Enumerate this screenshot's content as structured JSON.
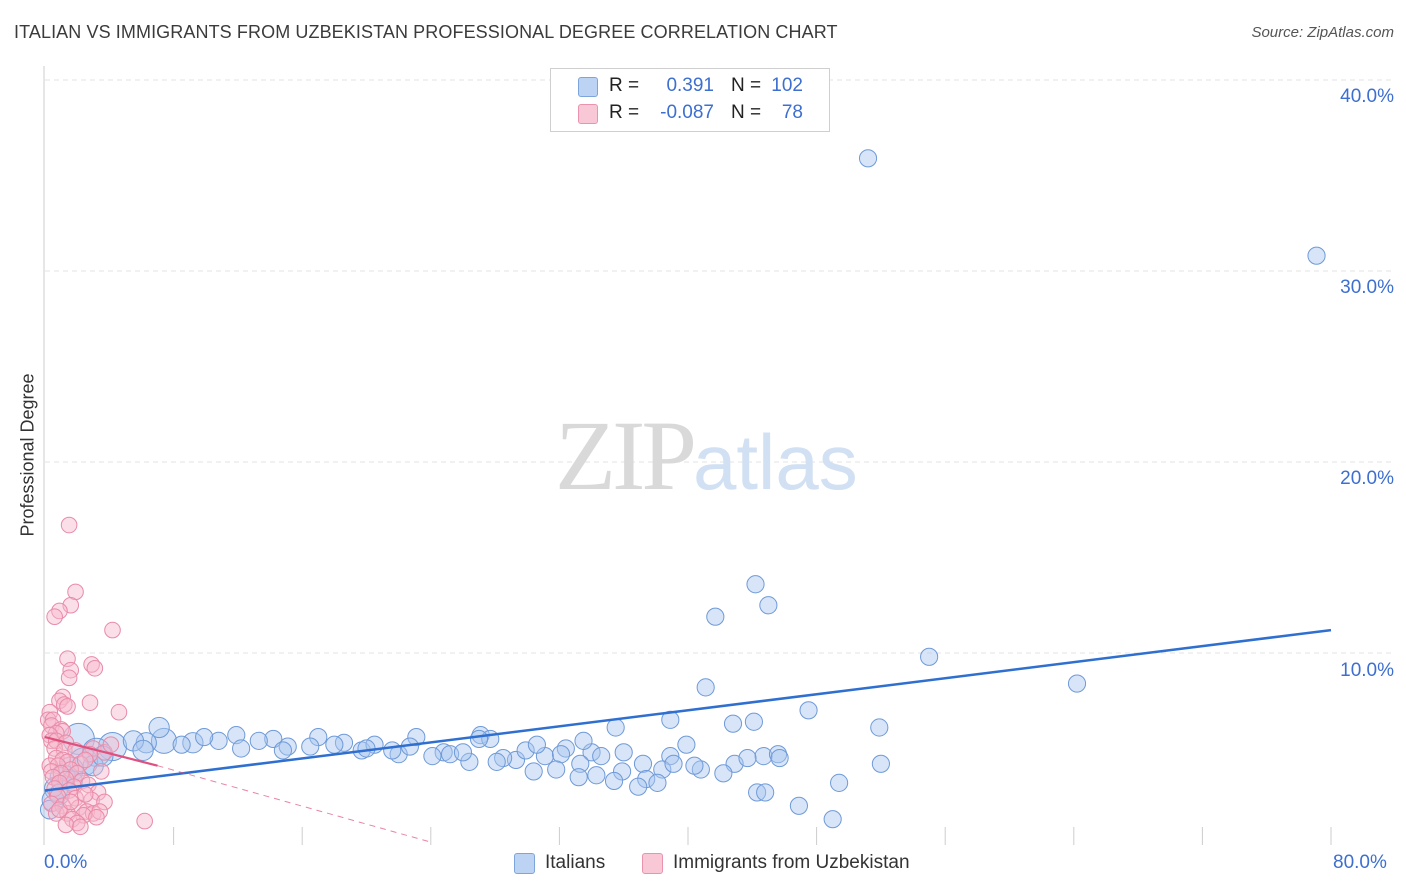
{
  "title": "ITALIAN VS IMMIGRANTS FROM UZBEKISTAN PROFESSIONAL DEGREE CORRELATION CHART",
  "source": "Source: ZipAtlas.com",
  "watermark": {
    "part1": "ZIP",
    "part2": "atlas"
  },
  "colors": {
    "blue_fill": "#a9c6f0",
    "blue_stroke": "#6e9ad8",
    "blue_line": "#2e6fd0",
    "pink_fill": "#f6b8cb",
    "pink_stroke": "#e98aa8",
    "pink_line": "#e0507e",
    "grid": "#e3e3e3",
    "tick_text": "#3d6fd0"
  },
  "legend": {
    "rows": [
      {
        "r_label": "R =",
        "r_value": "0.391",
        "n_label": "N =",
        "n_value": "102"
      },
      {
        "r_label": "R =",
        "r_value": "-0.087",
        "n_label": "N =",
        "n_value": "78"
      }
    ]
  },
  "bottom_legend": {
    "series1": "Italians",
    "series2": "Immigrants from Uzbekistan"
  },
  "x_ticks": {
    "left": "0.0%",
    "right": "80.0%"
  },
  "y_ticks": [
    "40.0%",
    "30.0%",
    "20.0%",
    "10.0%"
  ],
  "chart_data": {
    "type": "scatter",
    "title": "ITALIAN VS IMMIGRANTS FROM UZBEKISTAN PROFESSIONAL DEGREE CORRELATION CHART",
    "xlabel": "",
    "ylabel": "Professional Degree",
    "xlim": [
      0,
      80
    ],
    "ylim": [
      0,
      42
    ],
    "y_gridlines": [
      10,
      20,
      30,
      40
    ],
    "series": [
      {
        "name": "Italians",
        "R": 0.391,
        "N": 102,
        "trend": {
          "x": [
            0,
            80
          ],
          "y": [
            2.8,
            11.2
          ]
        },
        "points": [
          [
            51.2,
            35.9,
            11
          ],
          [
            79.1,
            30.8,
            11
          ],
          [
            44.2,
            13.6,
            11
          ],
          [
            45.0,
            12.5,
            11
          ],
          [
            41.7,
            11.9,
            11
          ],
          [
            55.0,
            9.8,
            11
          ],
          [
            64.2,
            8.4,
            11
          ],
          [
            41.1,
            8.2,
            11
          ],
          [
            47.5,
            7.0,
            11
          ],
          [
            38.9,
            6.5,
            11
          ],
          [
            42.8,
            6.3,
            11
          ],
          [
            44.1,
            6.4,
            11
          ],
          [
            35.5,
            6.1,
            11
          ],
          [
            51.9,
            6.1,
            11
          ],
          [
            39.9,
            5.2,
            11
          ],
          [
            34.0,
            4.8,
            11
          ],
          [
            36.0,
            4.8,
            11
          ],
          [
            37.2,
            4.2,
            11
          ],
          [
            38.9,
            4.6,
            11
          ],
          [
            44.7,
            4.6,
            11
          ],
          [
            45.6,
            4.7,
            11
          ],
          [
            42.9,
            4.2,
            11
          ],
          [
            49.4,
            3.2,
            11
          ],
          [
            52.0,
            4.2,
            11
          ],
          [
            44.3,
            2.7,
            11
          ],
          [
            44.8,
            2.7,
            11
          ],
          [
            46.9,
            2.0,
            11
          ],
          [
            49.0,
            1.3,
            11
          ],
          [
            2.1,
            5.5,
            20
          ],
          [
            4.2,
            5.1,
            18
          ],
          [
            7.4,
            5.4,
            16
          ],
          [
            7.1,
            6.1,
            13
          ],
          [
            9.2,
            5.3,
            13
          ],
          [
            11.9,
            5.7,
            11
          ],
          [
            14.2,
            5.5,
            11
          ],
          [
            17.0,
            5.6,
            11
          ],
          [
            23.1,
            5.6,
            11
          ],
          [
            19.7,
            4.9,
            11
          ],
          [
            22.0,
            4.7,
            11
          ],
          [
            24.8,
            4.8,
            11
          ],
          [
            26.4,
            4.3,
            11
          ],
          [
            27.1,
            5.7,
            11
          ],
          [
            29.3,
            4.4,
            11
          ],
          [
            31.1,
            4.6,
            11
          ],
          [
            32.4,
            5.0,
            11
          ],
          [
            35.9,
            3.8,
            11
          ],
          [
            33.3,
            4.2,
            11
          ],
          [
            30.4,
            3.8,
            11
          ],
          [
            28.5,
            4.5,
            11
          ],
          [
            25.2,
            4.7,
            11
          ],
          [
            21.6,
            4.9,
            11
          ],
          [
            20.5,
            5.2,
            11
          ],
          [
            18.6,
            5.3,
            11
          ],
          [
            16.5,
            5.1,
            11
          ],
          [
            15.1,
            5.1,
            11
          ],
          [
            13.3,
            5.4,
            11
          ],
          [
            10.8,
            5.4,
            11
          ],
          [
            9.9,
            5.6,
            11
          ],
          [
            8.5,
            5.2,
            11
          ],
          [
            6.3,
            5.3,
            13
          ],
          [
            5.5,
            5.4,
            13
          ],
          [
            3.2,
            4.8,
            18
          ],
          [
            2.4,
            4.3,
            18
          ],
          [
            1.6,
            3.9,
            16
          ],
          [
            1.1,
            3.5,
            16
          ],
          [
            0.7,
            2.9,
            15
          ],
          [
            0.5,
            2.3,
            14
          ],
          [
            0.3,
            1.8,
            12
          ],
          [
            0.9,
            2.6,
            13
          ],
          [
            1.7,
            3.3,
            13
          ],
          [
            3.0,
            4.1,
            13
          ],
          [
            3.6,
            4.6,
            13
          ],
          [
            6.1,
            4.9,
            13
          ],
          [
            12.2,
            5.0,
            11
          ],
          [
            14.8,
            4.9,
            11
          ],
          [
            18.0,
            5.2,
            11
          ],
          [
            20.0,
            5.0,
            11
          ],
          [
            22.7,
            5.1,
            11
          ],
          [
            24.1,
            4.6,
            11
          ],
          [
            26.0,
            4.8,
            11
          ],
          [
            27.7,
            5.5,
            11
          ],
          [
            29.9,
            4.9,
            11
          ],
          [
            30.6,
            5.2,
            11
          ],
          [
            32.1,
            4.7,
            11
          ],
          [
            33.5,
            5.4,
            11
          ],
          [
            34.6,
            4.6,
            11
          ],
          [
            31.8,
            3.9,
            11
          ],
          [
            28.1,
            4.3,
            11
          ],
          [
            37.4,
            3.4,
            11
          ],
          [
            38.4,
            3.9,
            11
          ],
          [
            39.1,
            4.2,
            11
          ],
          [
            40.8,
            3.9,
            11
          ],
          [
            42.2,
            3.7,
            11
          ],
          [
            36.9,
            3.0,
            11
          ],
          [
            38.1,
            3.2,
            11
          ],
          [
            40.4,
            4.1,
            11
          ],
          [
            43.7,
            4.5,
            11
          ],
          [
            45.7,
            4.5,
            11
          ],
          [
            34.3,
            3.6,
            11
          ],
          [
            33.2,
            3.5,
            11
          ],
          [
            35.4,
            3.3,
            11
          ],
          [
            27.0,
            5.5,
            11
          ]
        ]
      },
      {
        "name": "Immigrants from Uzbekistan",
        "R": -0.087,
        "N": 78,
        "trend_solid": {
          "x": [
            0,
            7
          ],
          "y": [
            5.6,
            4.1
          ]
        },
        "trend_dashed": {
          "x": [
            7,
            24
          ],
          "y": [
            4.1,
            0.1
          ]
        },
        "points": [
          [
            1.5,
            16.7,
            10
          ],
          [
            1.9,
            13.2,
            10
          ],
          [
            1.6,
            12.5,
            10
          ],
          [
            0.9,
            12.2,
            10
          ],
          [
            0.6,
            11.9,
            10
          ],
          [
            4.2,
            11.2,
            10
          ],
          [
            1.4,
            9.7,
            10
          ],
          [
            2.9,
            9.4,
            10
          ],
          [
            1.6,
            9.1,
            10
          ],
          [
            3.1,
            9.2,
            10
          ],
          [
            1.5,
            8.7,
            10
          ],
          [
            1.1,
            7.7,
            10
          ],
          [
            0.9,
            7.5,
            10
          ],
          [
            2.8,
            7.4,
            10
          ],
          [
            1.2,
            7.3,
            10
          ],
          [
            1.4,
            7.2,
            10
          ],
          [
            4.6,
            6.9,
            10
          ],
          [
            0.3,
            6.9,
            10
          ],
          [
            0.2,
            6.5,
            10
          ],
          [
            0.5,
            6.5,
            10
          ],
          [
            0.4,
            6.2,
            10
          ],
          [
            1.0,
            6.0,
            10
          ],
          [
            1.1,
            5.9,
            10
          ],
          [
            0.7,
            5.8,
            10
          ],
          [
            0.3,
            5.7,
            10
          ],
          [
            0.4,
            5.4,
            10
          ],
          [
            0.7,
            5.4,
            10
          ],
          [
            1.3,
            5.3,
            10
          ],
          [
            0.6,
            5.0,
            10
          ],
          [
            3.0,
            5.0,
            10
          ],
          [
            1.2,
            4.9,
            10
          ],
          [
            1.9,
            4.9,
            10
          ],
          [
            3.7,
            4.8,
            10
          ],
          [
            4.1,
            5.2,
            10
          ],
          [
            2.8,
            4.7,
            10
          ],
          [
            0.7,
            4.5,
            10
          ],
          [
            1.1,
            4.4,
            10
          ],
          [
            1.4,
            4.3,
            10
          ],
          [
            2.2,
            4.2,
            10
          ],
          [
            2.5,
            4.4,
            10
          ],
          [
            0.3,
            4.1,
            10
          ],
          [
            0.8,
            4.1,
            10
          ],
          [
            1.6,
            3.9,
            10
          ],
          [
            0.4,
            3.8,
            10
          ],
          [
            1.0,
            3.7,
            10
          ],
          [
            2.0,
            3.7,
            10
          ],
          [
            3.5,
            3.8,
            10
          ],
          [
            0.5,
            3.5,
            10
          ],
          [
            1.3,
            3.4,
            10
          ],
          [
            2.3,
            3.3,
            10
          ],
          [
            0.9,
            3.2,
            10
          ],
          [
            1.8,
            3.0,
            10
          ],
          [
            2.7,
            3.1,
            10
          ],
          [
            0.6,
            2.9,
            10
          ],
          [
            1.5,
            2.8,
            10
          ],
          [
            3.3,
            2.7,
            10
          ],
          [
            0.8,
            2.5,
            10
          ],
          [
            1.9,
            2.4,
            10
          ],
          [
            2.9,
            2.3,
            10
          ],
          [
            3.7,
            2.2,
            10
          ],
          [
            0.4,
            2.1,
            10
          ],
          [
            1.1,
            2.0,
            10
          ],
          [
            2.1,
            1.9,
            10
          ],
          [
            2.6,
            1.7,
            10
          ],
          [
            0.7,
            1.6,
            10
          ],
          [
            1.4,
            1.6,
            10
          ],
          [
            3.0,
            1.6,
            10
          ],
          [
            3.4,
            1.7,
            10
          ],
          [
            2.4,
            1.5,
            10
          ],
          [
            1.7,
            1.3,
            10
          ],
          [
            3.2,
            1.4,
            10
          ],
          [
            2.0,
            1.1,
            10
          ],
          [
            1.3,
            1.0,
            10
          ],
          [
            2.2,
            0.9,
            10
          ],
          [
            6.2,
            1.2,
            10
          ],
          [
            0.9,
            1.8,
            10
          ],
          [
            1.6,
            2.2,
            10
          ],
          [
            2.5,
            2.6,
            10
          ]
        ]
      }
    ]
  }
}
